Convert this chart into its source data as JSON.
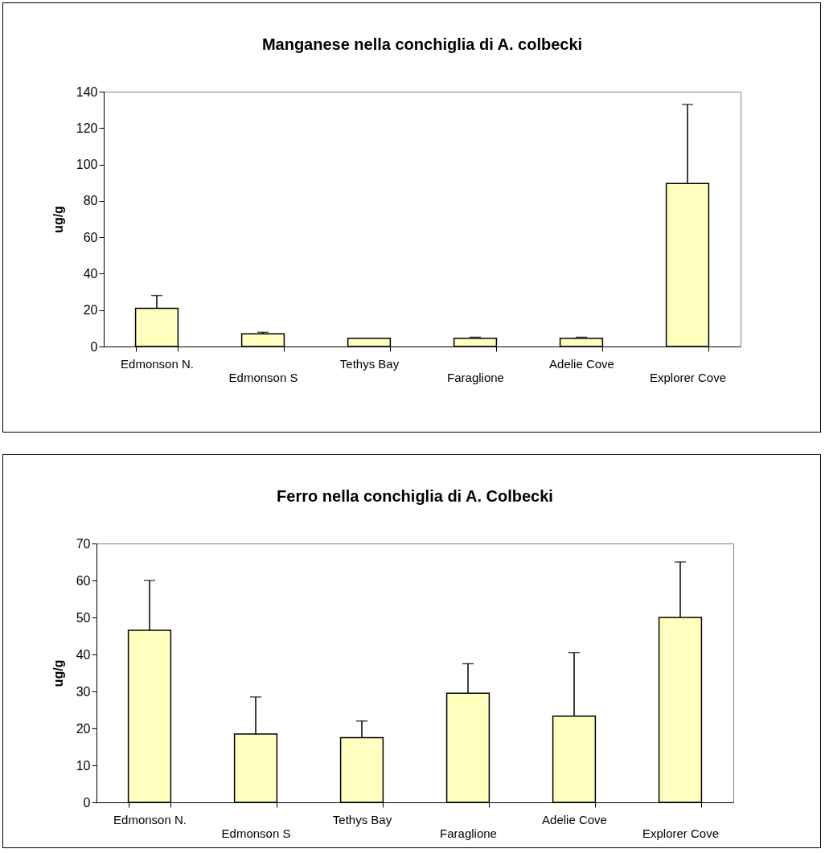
{
  "chart_data": [
    {
      "type": "bar",
      "title": "Manganese nella conchiglia di A. colbecki",
      "ylabel": "ug/g",
      "categories": [
        "Edmonson N.",
        "Edmonson S",
        "Tethys Bay",
        "Faraglione",
        "Adelie Cove",
        "Explorer Cove"
      ],
      "values": [
        21,
        7,
        4.5,
        4.5,
        4.5,
        89.5
      ],
      "errors": [
        [
          21,
          28
        ],
        [
          7,
          7.8
        ],
        null,
        [
          4.5,
          5.1
        ],
        [
          4.5,
          5.1
        ],
        [
          89.5,
          133
        ]
      ],
      "color": "#ffffc0",
      "ylim": [
        0,
        140
      ],
      "yticks": [
        0,
        20,
        40,
        60,
        80,
        100,
        120,
        140
      ],
      "grid": false
    },
    {
      "type": "bar",
      "title": "Ferro nella conchiglia di A. Colbecki",
      "ylabel": "ug/g",
      "categories": [
        "Edmonson N.",
        "Edmonson S",
        "Tethys Bay",
        "Faraglione",
        "Adelie Cove",
        "Explorer Cove"
      ],
      "values": [
        46.5,
        18.5,
        17.5,
        29.5,
        23.3,
        50
      ],
      "errors": [
        [
          46.5,
          60
        ],
        [
          18.5,
          28.5
        ],
        [
          17.5,
          22
        ],
        [
          29.5,
          37.5
        ],
        [
          23.3,
          40.5
        ],
        [
          50,
          65
        ]
      ],
      "color": "#ffffc0",
      "ylim": [
        0,
        70
      ],
      "yticks": [
        0,
        10,
        20,
        30,
        40,
        50,
        60,
        70
      ],
      "grid": false
    }
  ]
}
